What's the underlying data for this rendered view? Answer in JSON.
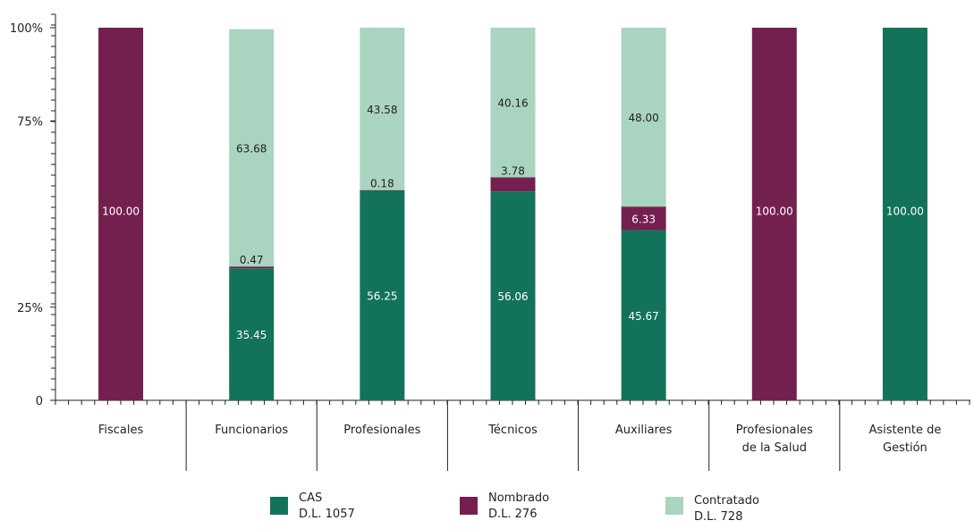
{
  "chart_data": {
    "type": "bar",
    "stacked": true,
    "percent_stacked": true,
    "categories": [
      [
        "Fiscales"
      ],
      [
        "Funcionarios"
      ],
      [
        "Profesionales"
      ],
      [
        "Técnicos"
      ],
      [
        "Auxiliares"
      ],
      [
        "Profesionales",
        "de la Salud"
      ],
      [
        "Asistente de",
        "Gestión"
      ]
    ],
    "y_tick_labels": [
      "0",
      "25%",
      "75%",
      "100%"
    ],
    "y_ticks": [
      0,
      25,
      75,
      100
    ],
    "ylim": [
      0,
      100
    ],
    "series": [
      {
        "name": "CAS D.L. 1057",
        "color": "#13735a",
        "values": [
          0,
          35.45,
          56.25,
          56.06,
          45.67,
          0,
          100.0
        ],
        "labels": [
          "",
          "35.45",
          "56.25",
          "56.06",
          "45.67",
          "",
          "100.00"
        ]
      },
      {
        "name": "Nombrado D.L. 276",
        "color": "#74204f",
        "values": [
          100.0,
          0.47,
          0.18,
          3.78,
          6.33,
          100.0,
          0
        ],
        "labels": [
          "100.00",
          "0.47",
          "0.18",
          "3.78",
          "6.33",
          "100.00",
          ""
        ]
      },
      {
        "name": "Contratado D.L. 728",
        "color": "#a9d4bf",
        "values": [
          0,
          63.68,
          43.58,
          40.16,
          48.0,
          0,
          0
        ],
        "labels": [
          "",
          "63.68",
          "43.58",
          "40.16",
          "48.00",
          "",
          ""
        ]
      }
    ],
    "grid": false,
    "legend": "bottom"
  },
  "legend": {
    "items": [
      {
        "line1": "CAS",
        "line2": "D.L. 1057",
        "color": "#13735a"
      },
      {
        "line1": "Nombrado",
        "line2": "D.L. 276",
        "color": "#74204f"
      },
      {
        "line1": "Contratado",
        "line2": "D.L. 728",
        "color": "#a9d4bf"
      }
    ]
  }
}
